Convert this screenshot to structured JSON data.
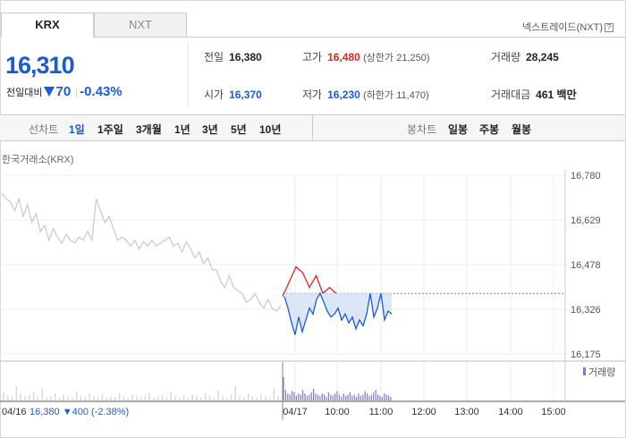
{
  "tabs": {
    "krx": "KRX",
    "nxt": "NXT"
  },
  "nxt_link": "넥스트레이드(NXT)",
  "nxt_link_help": "?",
  "price": {
    "current": "16,310",
    "change_label": "전일대비",
    "change": "70",
    "change_pct": "-0.43%"
  },
  "stats": {
    "prev_close": {
      "label": "전일",
      "value": "16,380"
    },
    "high": {
      "label": "고가",
      "value": "16,480",
      "limit_label": "(상한가 21,250)"
    },
    "volume": {
      "label": "거래량",
      "value": "28,245"
    },
    "open": {
      "label": "시가",
      "value": "16,370"
    },
    "low": {
      "label": "저가",
      "value": "16,230",
      "limit_label": "(하한가 11,470)"
    },
    "turnover": {
      "label": "거래대금",
      "value": "461",
      "unit": "백만"
    }
  },
  "toolbar": {
    "line_label": "선차트",
    "periods": [
      "1일",
      "1주일",
      "3개월",
      "1년",
      "3년",
      "5년",
      "10년"
    ],
    "active_period": "1일",
    "candle_label": "봉차트",
    "candle_periods": [
      "일봉",
      "주봉",
      "월봉"
    ]
  },
  "exchange_label": "한국거래소(KRX)",
  "volume_legend": "거래량",
  "prev_day_summary": {
    "date": "04/16",
    "close": "16,380",
    "change": "▼400",
    "change_pct": "(-2.38%)"
  },
  "chart_data": {
    "type": "line",
    "title": "",
    "y_ticks": [
      "16,780",
      "16,629",
      "16,478",
      "16,326",
      "16,175"
    ],
    "ylim": [
      16175,
      16780
    ],
    "x_ticks": [
      "04/16",
      "04/17",
      "10:00",
      "11:00",
      "12:00",
      "13:00",
      "14:00",
      "15:00"
    ],
    "reference_line": 16380,
    "series": [
      {
        "values_prev_day": [
          16720,
          16700,
          16690,
          16660,
          16700,
          16640,
          16680,
          16620,
          16650,
          16590,
          16610,
          16560,
          16600,
          16570,
          16550,
          16580,
          16560,
          16550,
          16570,
          16560,
          16590,
          16560,
          16700,
          16660,
          16620,
          16640,
          16600,
          16560,
          16570,
          16560,
          16540,
          16560,
          16530,
          16555,
          16540,
          16560,
          16540,
          16550,
          16560,
          16570,
          16540,
          16550,
          16520,
          16555,
          16530,
          16500,
          16520,
          16480,
          16500,
          16460,
          16460,
          16420,
          16400,
          16440,
          16400,
          16390,
          16380,
          16350,
          16360,
          16380,
          16350,
          16330,
          16360,
          16330,
          16320,
          16340
        ],
        "values_today_up": [
          16370,
          16420,
          16470,
          16450,
          16400,
          16440,
          16380,
          16400,
          16380
        ],
        "values_today_down": [
          16370,
          16330,
          16280,
          16240,
          16300,
          16250,
          16290,
          16330,
          16310,
          16360,
          16380,
          16350,
          16320,
          16300,
          16310,
          16330,
          16290,
          16310,
          16280,
          16300,
          16260,
          16290,
          16270,
          16310,
          16380,
          16300,
          16330,
          16380,
          16290,
          16320,
          16310
        ]
      }
    ]
  },
  "colors": {
    "up": "#e0261c",
    "down": "#1a5bd8",
    "accent": "#1a5bd8",
    "volume": "#8a78c2",
    "prev_line": "#c8c8c8"
  }
}
